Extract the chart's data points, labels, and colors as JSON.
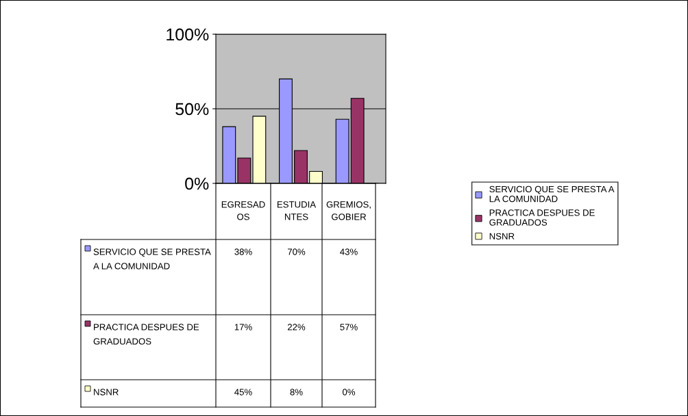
{
  "chart_data": {
    "type": "bar",
    "categories": [
      "EGRESADOS",
      "ESTUDIANTES",
      "GREMIOS, GOBIER"
    ],
    "series": [
      {
        "name": "SERVICIO QUE SE PRESTA A LA COMUNIDAD",
        "color": "#9999ff",
        "values": [
          38,
          70,
          43
        ],
        "value_labels": [
          "38%",
          "70%",
          "43%"
        ]
      },
      {
        "name": "PRACTICA DESPUES DE GRADUADOS",
        "color": "#993366",
        "values": [
          17,
          22,
          57
        ],
        "value_labels": [
          "17%",
          "22%",
          "57%"
        ]
      },
      {
        "name": "NSNR",
        "color": "#ffffcc",
        "values": [
          45,
          8,
          0
        ],
        "value_labels": [
          "45%",
          "8%",
          "0%"
        ]
      }
    ],
    "ylim": [
      0,
      100
    ],
    "yticks": [
      {
        "value": 0,
        "label": "0%"
      },
      {
        "value": 50,
        "label": "50%"
      },
      {
        "value": 100,
        "label": "100%"
      }
    ],
    "grid": "y",
    "legend": "right",
    "data_labels": true
  }
}
